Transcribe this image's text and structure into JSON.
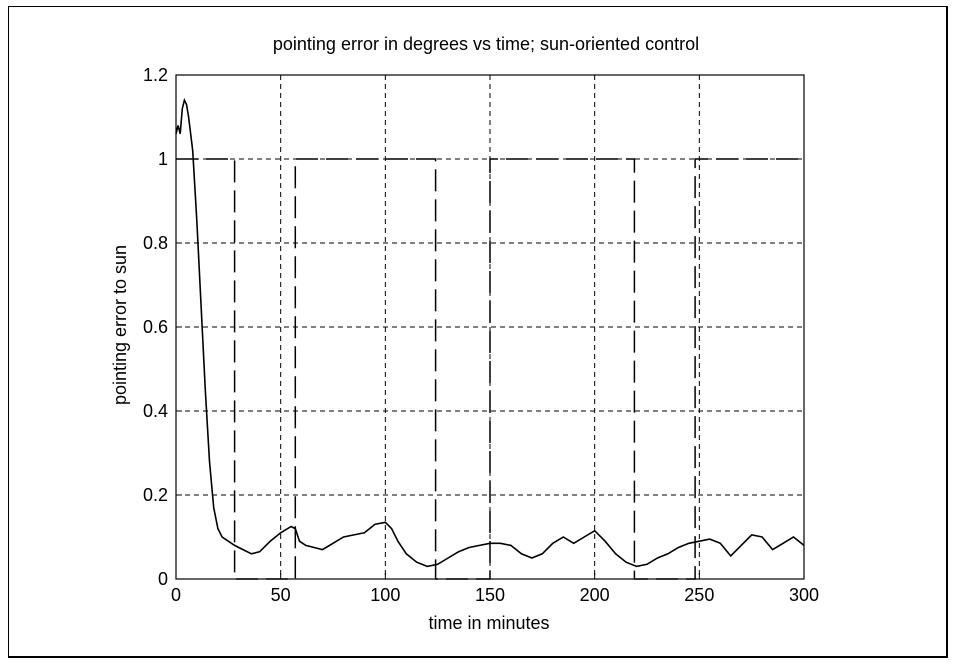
{
  "chart_data": {
    "type": "line",
    "title": "pointing error in degrees vs time; sun-oriented control",
    "xlabel": "time in minutes",
    "ylabel": "pointing error to sun",
    "xlim": [
      0,
      300
    ],
    "ylim": [
      0,
      1.2
    ],
    "xticks": [
      0,
      50,
      100,
      150,
      200,
      250,
      300
    ],
    "yticks": [
      0,
      0.2,
      0.4,
      0.6,
      0.8,
      1,
      1.2
    ],
    "xtick_labels": [
      "0",
      "50",
      "100",
      "150",
      "200",
      "250",
      "300"
    ],
    "ytick_labels": [
      "0",
      "0.2",
      "0.4",
      "0.6",
      "0.8",
      "1",
      "1.2"
    ],
    "grid": true,
    "series": [
      {
        "line_style": "solid",
        "x": [
          0,
          1,
          2,
          3,
          4,
          5,
          6,
          8,
          10,
          12,
          14,
          16,
          18,
          20,
          22,
          25,
          28,
          32,
          36,
          40,
          45,
          50,
          55,
          57,
          59,
          62,
          66,
          70,
          75,
          80,
          85,
          90,
          95,
          100,
          103,
          106,
          110,
          115,
          120,
          125,
          130,
          135,
          140,
          145,
          150,
          155,
          160,
          165,
          170,
          175,
          180,
          185,
          190,
          195,
          200,
          205,
          210,
          215,
          220,
          225,
          230,
          235,
          240,
          245,
          250,
          255,
          260,
          265,
          270,
          275,
          280,
          285,
          290,
          295,
          300
        ],
        "y": [
          1.06,
          1.08,
          1.06,
          1.12,
          1.14,
          1.13,
          1.1,
          1.02,
          0.85,
          0.65,
          0.45,
          0.28,
          0.17,
          0.12,
          0.1,
          0.09,
          0.08,
          0.07,
          0.06,
          0.065,
          0.09,
          0.11,
          0.125,
          0.12,
          0.09,
          0.08,
          0.075,
          0.07,
          0.085,
          0.1,
          0.105,
          0.11,
          0.13,
          0.135,
          0.12,
          0.09,
          0.06,
          0.04,
          0.03,
          0.035,
          0.05,
          0.065,
          0.075,
          0.08,
          0.085,
          0.085,
          0.08,
          0.06,
          0.05,
          0.06,
          0.085,
          0.1,
          0.085,
          0.1,
          0.115,
          0.09,
          0.06,
          0.04,
          0.03,
          0.035,
          0.05,
          0.06,
          0.075,
          0.085,
          0.09,
          0.095,
          0.085,
          0.055,
          0.08,
          0.105,
          0.1,
          0.07,
          0.085,
          0.1,
          0.08
        ]
      },
      {
        "line_style": "dashed-long",
        "x": [
          0,
          28,
          28,
          57,
          57,
          124,
          124,
          150,
          150,
          219,
          219,
          248,
          248,
          300
        ],
        "y": [
          1,
          1,
          0,
          0,
          1,
          1,
          0,
          0,
          1,
          1,
          0,
          0,
          1,
          1
        ]
      }
    ]
  }
}
